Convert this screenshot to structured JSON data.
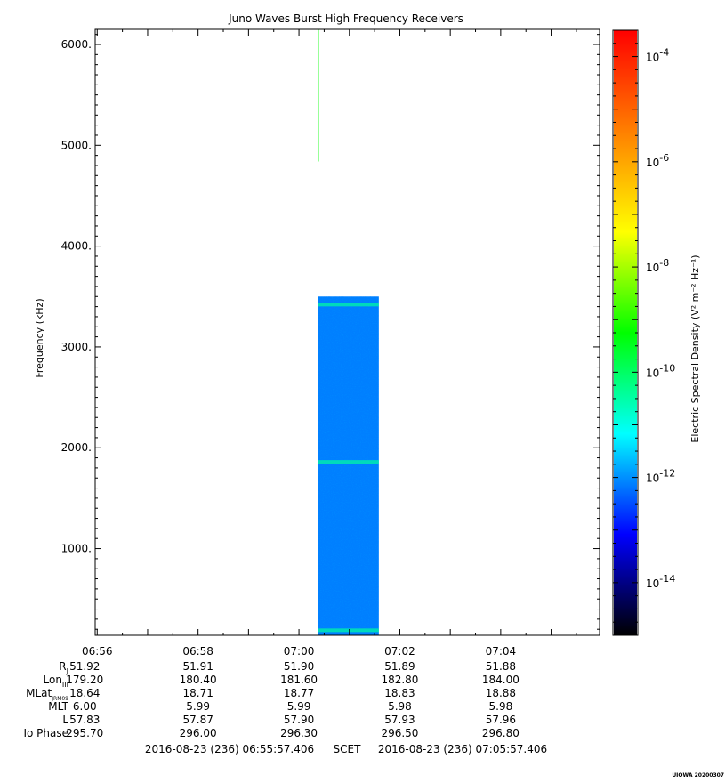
{
  "chart_data": {
    "type": "heatmap",
    "title": "Juno Waves Burst High Frequency Receivers",
    "ylabel": "Frequency (kHz)",
    "ylim": [
      140,
      6150
    ],
    "yticks": [
      1000,
      2000,
      3000,
      4000,
      5000,
      6000
    ],
    "ytick_labels": [
      "1000.",
      "2000.",
      "3000.",
      "4000.",
      "5000.",
      "6000."
    ],
    "xlim_minutes": [
      415.96,
      425.96
    ],
    "xticks": [
      "06:56",
      "06:58",
      "07:00",
      "07:02",
      "07:04"
    ],
    "colorbar": {
      "label": "Electric Spectral Density (V² m⁻² Hz⁻¹)",
      "scale": "log",
      "range_exp": [
        -15,
        -3.5
      ],
      "ticks_exp": [
        -4,
        -6,
        -8,
        -10,
        -12,
        -14
      ],
      "colors": [
        "#000000",
        "#00007f",
        "#0000ff",
        "#007fff",
        "#00ffff",
        "#00ff80",
        "#00ff00",
        "#7fff00",
        "#ffff00",
        "#ffbf00",
        "#ff7f00",
        "#ff3f00",
        "#ff0000"
      ]
    },
    "features": [
      {
        "name": "burst",
        "t_start": "07:00:23",
        "t_end": "07:01:35",
        "f_low": 140,
        "f_high": 3500,
        "level_exp": -12
      },
      {
        "name": "spike",
        "t": "07:00:23",
        "f_low": 4840,
        "f_high": 6150,
        "level_exp": -9
      }
    ],
    "ephemeris": {
      "rows": [
        {
          "label": "R",
          "sub": "J",
          "values": [
            "51.92",
            "51.91",
            "51.90",
            "51.89",
            "51.88"
          ]
        },
        {
          "label": "Lon",
          "sub": "III",
          "values": [
            "179.20",
            "180.40",
            "181.60",
            "182.80",
            "184.00"
          ]
        },
        {
          "label": "MLat",
          "sub": "JRM09",
          "values": [
            "18.64",
            "18.71",
            "18.77",
            "18.83",
            "18.88"
          ]
        },
        {
          "label": "MLT",
          "sub": "",
          "values": [
            "6.00",
            "5.99",
            "5.99",
            "5.98",
            "5.98"
          ]
        },
        {
          "label": "L",
          "sub": "",
          "values": [
            "57.83",
            "57.87",
            "57.90",
            "57.93",
            "57.96"
          ]
        },
        {
          "label": "Io Phase",
          "sub": "",
          "values": [
            "295.70",
            "296.00",
            "296.30",
            "296.50",
            "296.80"
          ]
        }
      ]
    },
    "time_range": {
      "start": "2016-08-23 (236) 06:55:57.406",
      "label": "SCET",
      "end": "2016-08-23 (236) 07:05:57.406"
    },
    "footer": "UIOWA 20200307"
  }
}
